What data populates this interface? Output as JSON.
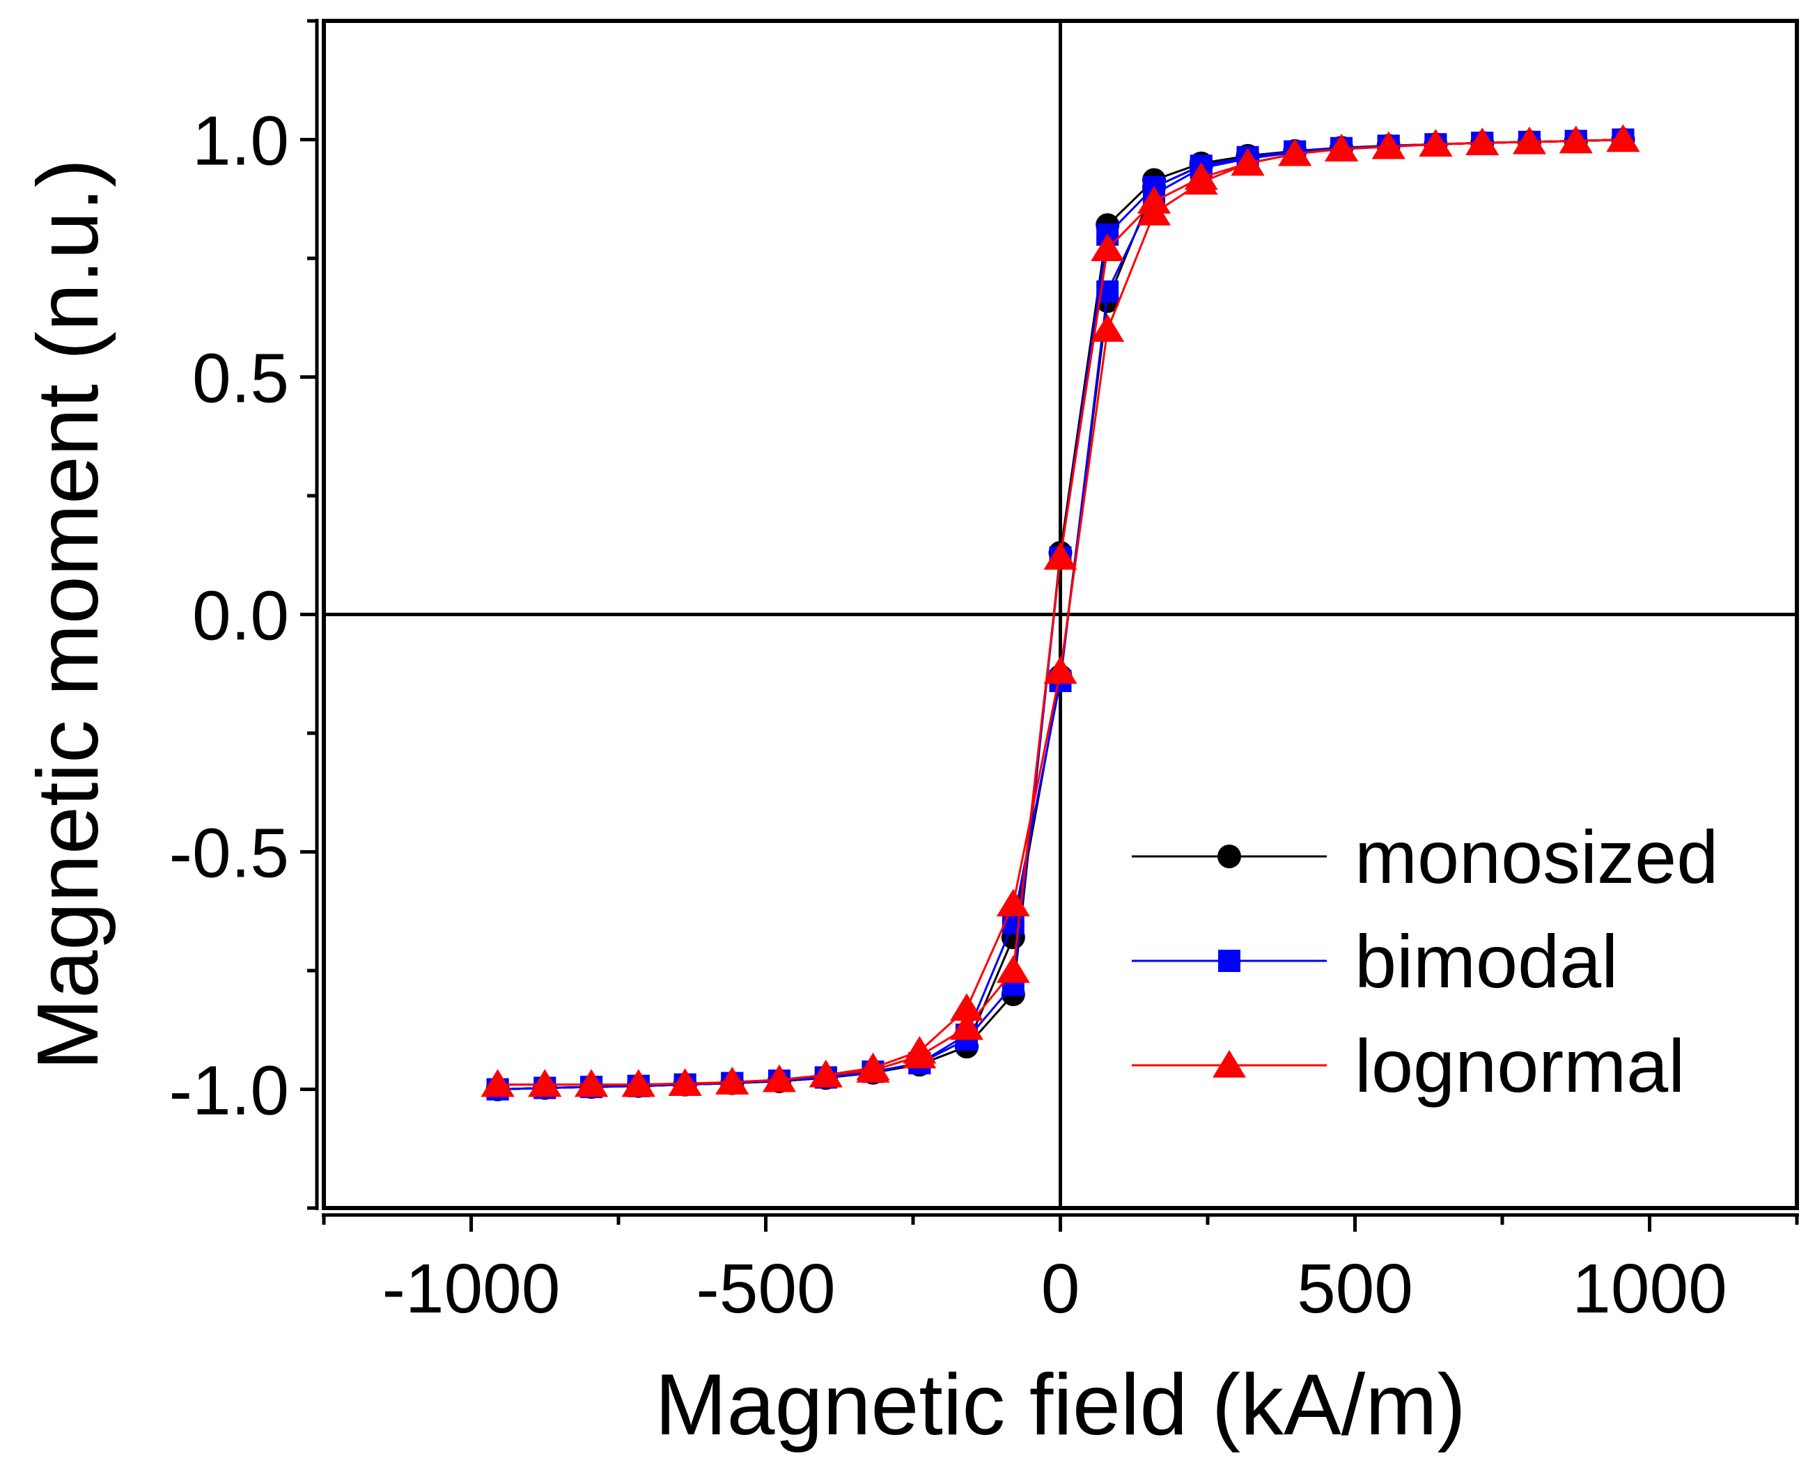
{
  "chart_data": {
    "type": "line",
    "title": "",
    "xlabel": "Magnetic field (kA/m)",
    "ylabel": "Magnetic moment (n.u.)",
    "xlim": [
      -1250,
      1250
    ],
    "ylim": [
      -1.25,
      1.25
    ],
    "x_ticks": [
      -1000,
      -500,
      0,
      500,
      1000
    ],
    "x_tick_labels": [
      "-1000",
      "-500",
      "0",
      "500",
      "1000"
    ],
    "y_ticks": [
      -1.0,
      -0.5,
      0.0,
      0.5,
      1.0
    ],
    "y_tick_labels": [
      "-1.0",
      "-0.5",
      "0.0",
      "0.5",
      "1.0"
    ],
    "zero_lines": true,
    "legend_position": "bottom-right",
    "series": [
      {
        "name": "monosized",
        "color": "#000000",
        "marker": "circle",
        "branches": [
          {
            "x": [
              -955,
              -875,
              -796,
              -716,
              -637,
              -557,
              -477,
              -398,
              -318,
              -239,
              -159,
              -80,
              0,
              80,
              159,
              239,
              318,
              398,
              477,
              557,
              637,
              716,
              796,
              875,
              955
            ],
            "y": [
              -1.0,
              -0.997,
              -0.995,
              -0.993,
              -0.99,
              -0.987,
              -0.983,
              -0.976,
              -0.965,
              -0.948,
              -0.91,
              -0.8,
              0.13,
              0.82,
              0.915,
              0.95,
              0.966,
              0.976,
              0.983,
              0.987,
              0.99,
              0.993,
              0.995,
              0.997,
              1.0
            ]
          },
          {
            "x": [
              -955,
              -875,
              -796,
              -716,
              -637,
              -557,
              -477,
              -398,
              -318,
              -239,
              -159,
              -80,
              0,
              80,
              159,
              239,
              318,
              398,
              477,
              557,
              637,
              716,
              796,
              875,
              955
            ],
            "y": [
              -1.0,
              -0.997,
              -0.995,
              -0.993,
              -0.99,
              -0.987,
              -0.983,
              -0.976,
              -0.965,
              -0.948,
              -0.91,
              -0.68,
              -0.13,
              0.66,
              0.9,
              0.945,
              0.963,
              0.975,
              0.982,
              0.987,
              0.99,
              0.993,
              0.995,
              0.997,
              1.0
            ]
          }
        ]
      },
      {
        "name": "bimodal",
        "color": "#0000ff",
        "marker": "square",
        "branches": [
          {
            "x": [
              -955,
              -875,
              -796,
              -716,
              -637,
              -557,
              -477,
              -398,
              -318,
              -239,
              -159,
              -80,
              0,
              80,
              159,
              239,
              318,
              398,
              477,
              557,
              637,
              716,
              796,
              875,
              955
            ],
            "y": [
              -1.0,
              -0.997,
              -0.995,
              -0.993,
              -0.99,
              -0.987,
              -0.982,
              -0.975,
              -0.963,
              -0.945,
              -0.895,
              -0.78,
              0.12,
              0.8,
              0.9,
              0.945,
              0.963,
              0.975,
              0.982,
              0.987,
              0.99,
              0.993,
              0.995,
              0.997,
              1.0
            ]
          },
          {
            "x": [
              -955,
              -875,
              -796,
              -716,
              -637,
              -557,
              -477,
              -398,
              -318,
              -239,
              -159,
              -80,
              0,
              80,
              159,
              239,
              318,
              398,
              477,
              557,
              637,
              716,
              796,
              875,
              955
            ],
            "y": [
              -1.0,
              -0.997,
              -0.995,
              -0.993,
              -0.99,
              -0.987,
              -0.982,
              -0.975,
              -0.963,
              -0.945,
              -0.885,
              -0.65,
              -0.14,
              0.68,
              0.885,
              0.94,
              0.96,
              0.973,
              0.981,
              0.986,
              0.99,
              0.993,
              0.995,
              0.997,
              1.0
            ]
          }
        ]
      },
      {
        "name": "lognormal",
        "color": "#ff0000",
        "marker": "triangle",
        "branches": [
          {
            "x": [
              -955,
              -875,
              -796,
              -716,
              -637,
              -557,
              -477,
              -398,
              -318,
              -239,
              -159,
              -80,
              0,
              80,
              159,
              239,
              318,
              398,
              477,
              557,
              637,
              716,
              796,
              875,
              955
            ],
            "y": [
              -0.99,
              -0.99,
              -0.99,
              -0.99,
              -0.988,
              -0.985,
              -0.98,
              -0.97,
              -0.96,
              -0.93,
              -0.87,
              -0.75,
              0.12,
              0.77,
              0.87,
              0.92,
              0.95,
              0.97,
              0.98,
              0.985,
              0.99,
              0.993,
              0.995,
              0.997,
              1.0
            ]
          },
          {
            "x": [
              -955,
              -875,
              -796,
              -716,
              -637,
              -557,
              -477,
              -398,
              -318,
              -239,
              -159,
              -80,
              0,
              80,
              159,
              239,
              318,
              398,
              477,
              557,
              637,
              716,
              796,
              875,
              955
            ],
            "y": [
              -0.99,
              -0.99,
              -0.99,
              -0.99,
              -0.988,
              -0.985,
              -0.98,
              -0.97,
              -0.955,
              -0.92,
              -0.83,
              -0.61,
              -0.12,
              0.6,
              0.845,
              0.91,
              0.95,
              0.97,
              0.98,
              0.985,
              0.99,
              0.993,
              0.995,
              0.997,
              1.0
            ]
          }
        ]
      }
    ]
  }
}
